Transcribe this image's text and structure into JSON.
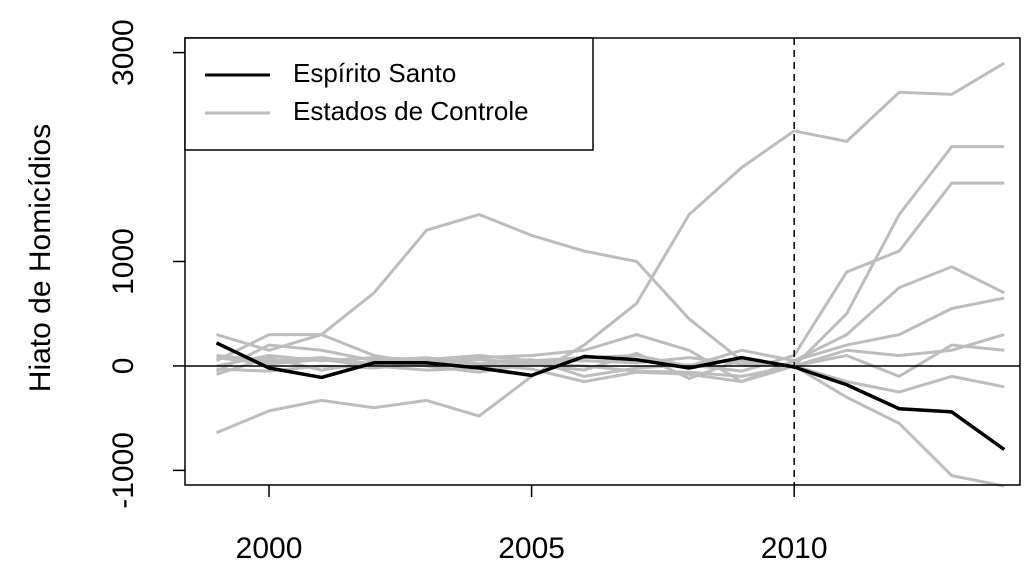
{
  "chart_data": {
    "type": "line",
    "y_label": "Hiato de Homicídios",
    "x": [
      1999,
      2000,
      2001,
      2002,
      2003,
      2004,
      2005,
      2006,
      2007,
      2008,
      2009,
      2010,
      2011,
      2012,
      2013,
      2014
    ],
    "series": [
      {
        "name": "Espírito Santo",
        "color": "#000000",
        "values": [
          220,
          -20,
          -110,
          30,
          30,
          -20,
          -90,
          90,
          60,
          -20,
          80,
          -10,
          -180,
          -410,
          -440,
          -800
        ]
      },
      {
        "name": "Estados de Controle",
        "color": "#bdbdbd",
        "lines": [
          [
            -640,
            -430,
            -330,
            -400,
            -330,
            -480,
            -100,
            200,
            600,
            1450,
            1900,
            2250,
            2150,
            2620,
            2600,
            2900
          ],
          [
            300,
            150,
            300,
            700,
            1300,
            1450,
            1250,
            1100,
            1000,
            450,
            50,
            0,
            -300,
            -550,
            -1050,
            -1150
          ],
          [
            100,
            50,
            80,
            20,
            40,
            60,
            30,
            0,
            -50,
            -60,
            -100,
            0,
            500,
            1450,
            2100,
            2100
          ],
          [
            -50,
            200,
            150,
            50,
            80,
            20,
            60,
            -100,
            -20,
            10,
            -50,
            100,
            900,
            1100,
            1750,
            1750
          ],
          [
            50,
            300,
            300,
            100,
            20,
            80,
            100,
            150,
            300,
            150,
            -150,
            50,
            300,
            750,
            950,
            700
          ],
          [
            0,
            100,
            50,
            80,
            60,
            100,
            50,
            80,
            100,
            0,
            150,
            50,
            200,
            300,
            550,
            650
          ],
          [
            -30,
            -50,
            0,
            -20,
            30,
            20,
            -30,
            -150,
            -60,
            -80,
            -150,
            0,
            150,
            100,
            150,
            300
          ],
          [
            80,
            20,
            60,
            0,
            -40,
            -20,
            40,
            50,
            30,
            80,
            20,
            0,
            -150,
            -250,
            -100,
            -200
          ],
          [
            -80,
            80,
            -40,
            40,
            0,
            -60,
            20,
            -40,
            120,
            -120,
            60,
            0,
            100,
            -100,
            200,
            150
          ]
        ]
      }
    ],
    "xlim": [
      1998.4,
      2014.3
    ],
    "ylim": [
      -1140,
      3140
    ],
    "xticks": [
      2000,
      2005,
      2010
    ],
    "yticks": [
      -1000,
      0,
      1000,
      3000
    ],
    "vline": 2010,
    "hline": 0,
    "legend": "top-left"
  }
}
